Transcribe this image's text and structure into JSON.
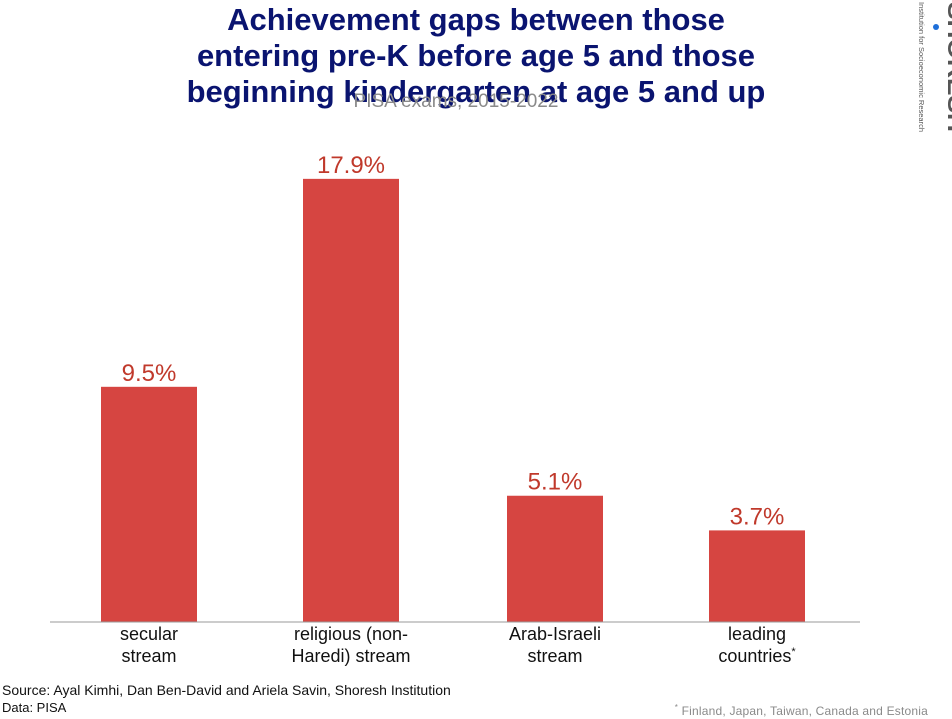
{
  "title_lines": [
    "Achievement gaps between those",
    "entering pre-K before age 5 and those",
    "beginning kindergarten at age 5 and up"
  ],
  "subtitle": "PISA exams, 2015-2022",
  "logo": {
    "name": "SHORESH",
    "tagline": "Institution for Socioeconomic Research"
  },
  "source": "Source: Ayal Kimhi, Dan Ben-David and Ariela Savin, Shoresh Institution",
  "data_source": "Data: PISA",
  "footnote": {
    "marker": "*",
    "text": "Finland, Japan, Taiwan, Canada and Estonia"
  },
  "chart_data": {
    "type": "bar",
    "title": "Achievement gaps between those entering pre-K before age 5 and those beginning kindergarten at age 5 and up",
    "subtitle": "PISA exams, 2015-2022",
    "categories": [
      [
        "secular",
        "stream"
      ],
      [
        "religious (non-",
        "Haredi) stream"
      ],
      [
        "Arab-Israeli",
        "stream"
      ],
      [
        "leading",
        "countries*"
      ]
    ],
    "values": [
      9.5,
      17.9,
      5.1,
      3.7
    ],
    "value_labels": [
      "9.5%",
      "17.9%",
      "5.1%",
      "3.7%"
    ],
    "xlabel": "",
    "ylabel": "",
    "ylim": [
      0,
      18.5
    ],
    "grid": false,
    "legend": "none",
    "colors": {
      "bar": "#d64541",
      "value_label": "#c0392b",
      "axis": "#9a9a9a",
      "tick_label": "#111111",
      "title": "#0a1470",
      "subtitle": "#8a8a8a"
    }
  }
}
